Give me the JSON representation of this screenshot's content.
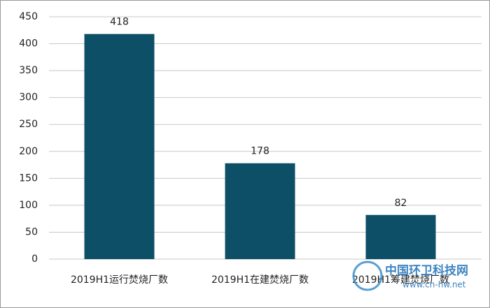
{
  "chart_data": {
    "type": "bar",
    "categories": [
      "2019H1运行焚烧厂数",
      "2019H1在建焚烧厂数",
      "2019H1筹建焚烧厂数"
    ],
    "values": [
      418,
      178,
      82
    ],
    "color": "#0c4f66",
    "ylim": [
      0,
      450
    ],
    "yticks": [
      0,
      50,
      100,
      150,
      200,
      250,
      300,
      350,
      400,
      450
    ],
    "grid": true
  },
  "watermark": {
    "title": "中国环卫科技网",
    "url": "www.cn-hw.net"
  }
}
